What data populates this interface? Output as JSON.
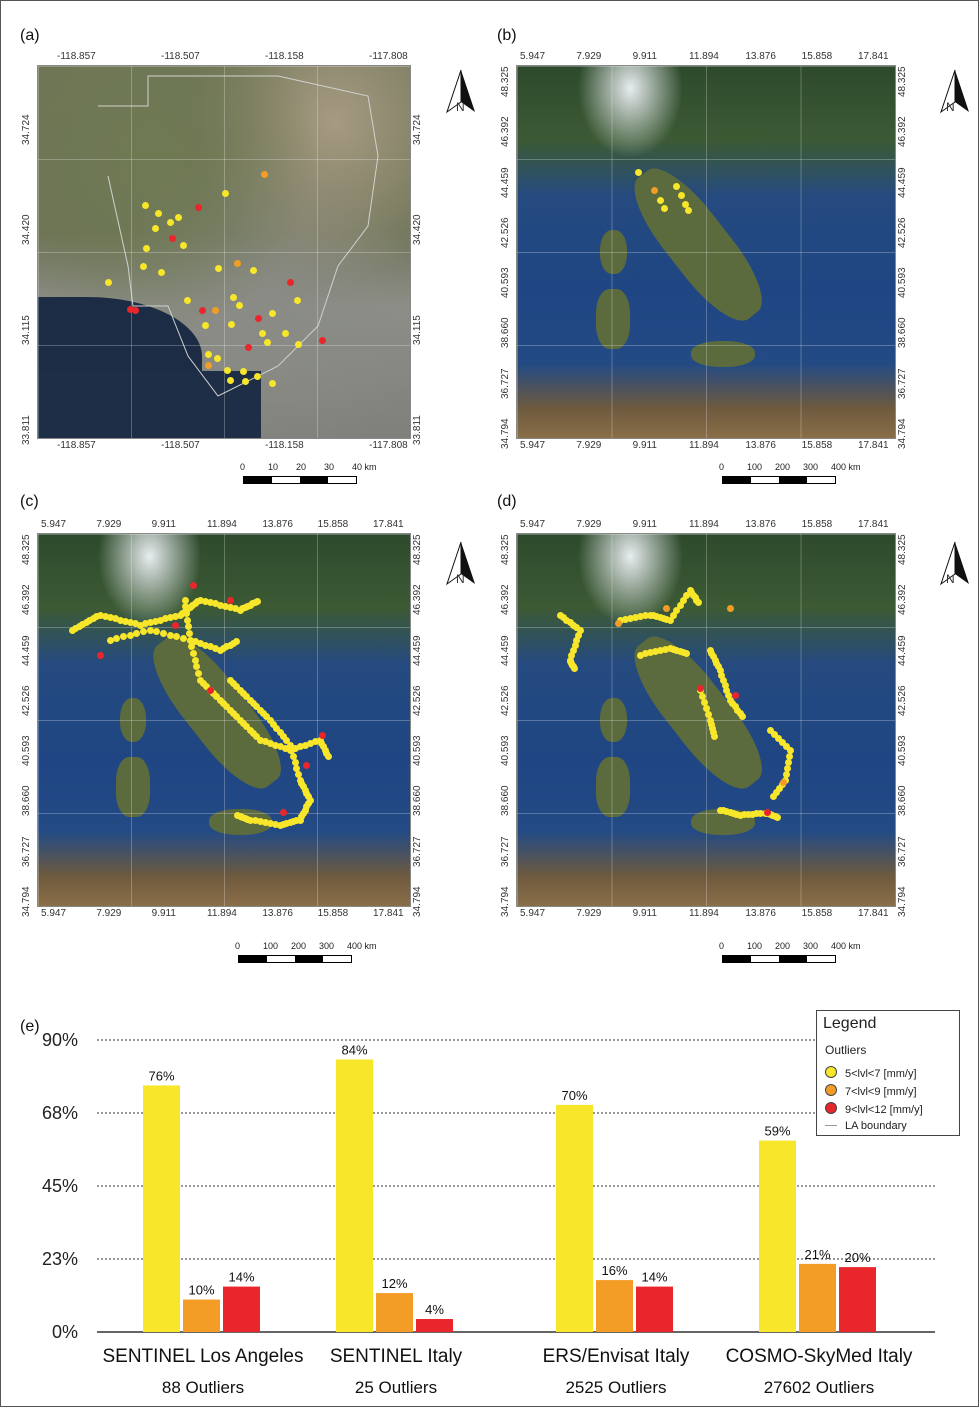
{
  "panels": {
    "a": {
      "label": "(a)",
      "top_ticks": [
        "-118.857",
        "-118.507",
        "-118.158",
        "-117.808"
      ],
      "bottom_ticks": [
        "-118.857",
        "-118.507",
        "-118.158",
        "-117.808"
      ],
      "left_ticks": [
        "34.724",
        "34.420",
        "34.115",
        "33.811"
      ],
      "right_ticks": [
        "34.724",
        "34.420",
        "34.115",
        "33.811"
      ],
      "scale": [
        "0",
        "10",
        "20",
        "30",
        "40 km"
      ]
    },
    "b": {
      "label": "(b)",
      "top_ticks": [
        "5.947",
        "7.929",
        "9.911",
        "11.894",
        "13.876",
        "15.858",
        "17.841"
      ],
      "bottom_ticks": [
        "5.947",
        "7.929",
        "9.911",
        "11.894",
        "13.876",
        "15.858",
        "17.841"
      ],
      "left_ticks": [
        "48.325",
        "46.392",
        "44.459",
        "42.526",
        "40.593",
        "38.660",
        "36.727",
        "34.794"
      ],
      "right_ticks": [
        "48.325",
        "46.392",
        "44.459",
        "42.526",
        "40.593",
        "38.660",
        "36.727",
        "34.794"
      ],
      "scale": [
        "0",
        "100",
        "200",
        "300",
        "400 km"
      ]
    },
    "c": {
      "label": "(c)",
      "top_ticks": [
        "5.947",
        "7.929",
        "9.911",
        "11.894",
        "13.876",
        "15.858",
        "17.841"
      ],
      "bottom_ticks": [
        "5.947",
        "7.929",
        "9.911",
        "11.894",
        "13.876",
        "15.858",
        "17.841"
      ],
      "left_ticks": [
        "48.325",
        "46.392",
        "44.459",
        "42.526",
        "40.593",
        "38.660",
        "36.727",
        "34.794"
      ],
      "right_ticks": [
        "48.325",
        "46.392",
        "44.459",
        "42.526",
        "40.593",
        "38.660",
        "36.727",
        "34.794"
      ],
      "scale": [
        "0",
        "100",
        "200",
        "300",
        "400 km"
      ]
    },
    "d": {
      "label": "(d)",
      "top_ticks": [
        "5.947",
        "7.929",
        "9.911",
        "11.894",
        "13.876",
        "15.858",
        "17.841"
      ],
      "bottom_ticks": [
        "5.947",
        "7.929",
        "9.911",
        "11.894",
        "13.876",
        "15.858",
        "17.841"
      ],
      "left_ticks": [
        "48.325",
        "46.392",
        "44.459",
        "42.526",
        "40.593",
        "38.660",
        "36.727",
        "34.794"
      ],
      "right_ticks": [
        "48.325",
        "46.392",
        "44.459",
        "42.526",
        "40.593",
        "38.660",
        "36.727",
        "34.794"
      ],
      "scale": [
        "0",
        "100",
        "200",
        "300",
        "400 km"
      ]
    },
    "e": {
      "label": "(e)"
    }
  },
  "north_label": "N",
  "legend": {
    "title": "Legend",
    "subtitle": "Outliers",
    "items": [
      {
        "label": "5<lvl<7 [mm/y]",
        "color": "#f8e62a"
      },
      {
        "label": "7<lvl<9 [mm/y]",
        "color": "#f39c26"
      },
      {
        "label": "9<lvl<12 [mm/y]",
        "color": "#e8262b"
      },
      {
        "label": "LA boundary",
        "color": "#999999"
      }
    ]
  },
  "chart_data": {
    "type": "bar",
    "categories": [
      "SENTINEL Los Angeles",
      "SENTINEL Italy",
      "ERS/Envisat Italy",
      "COSMO-SkyMed   Italy"
    ],
    "category_sublabels": [
      "88 Outliers",
      "25 Outliers",
      "2525 Outliers",
      "27602 Outliers"
    ],
    "series": [
      {
        "name": "5<lvl<7 [mm/y]",
        "color": "#f8e62a",
        "values": [
          76,
          84,
          70,
          59
        ],
        "labels": [
          "76%",
          "84%",
          "70%",
          "59%"
        ]
      },
      {
        "name": "7<lvl<9 [mm/y]",
        "color": "#f39c26",
        "values": [
          10,
          12,
          16,
          21
        ],
        "labels": [
          "10%",
          "12%",
          "16%",
          "21%"
        ]
      },
      {
        "name": "9<lvl<12 [mm/y]",
        "color": "#e8262b",
        "values": [
          14,
          4,
          14,
          20
        ],
        "labels": [
          "14%",
          "4%",
          "14%",
          "20%"
        ]
      }
    ],
    "yticks": [
      0,
      22.5,
      45,
      67.5,
      90
    ],
    "ytick_labels": [
      "0%",
      "23%",
      "45%",
      "68%",
      "90%"
    ],
    "ylim": [
      0,
      90
    ],
    "grid": "dotted horizontal",
    "legend_position": "top-right"
  }
}
